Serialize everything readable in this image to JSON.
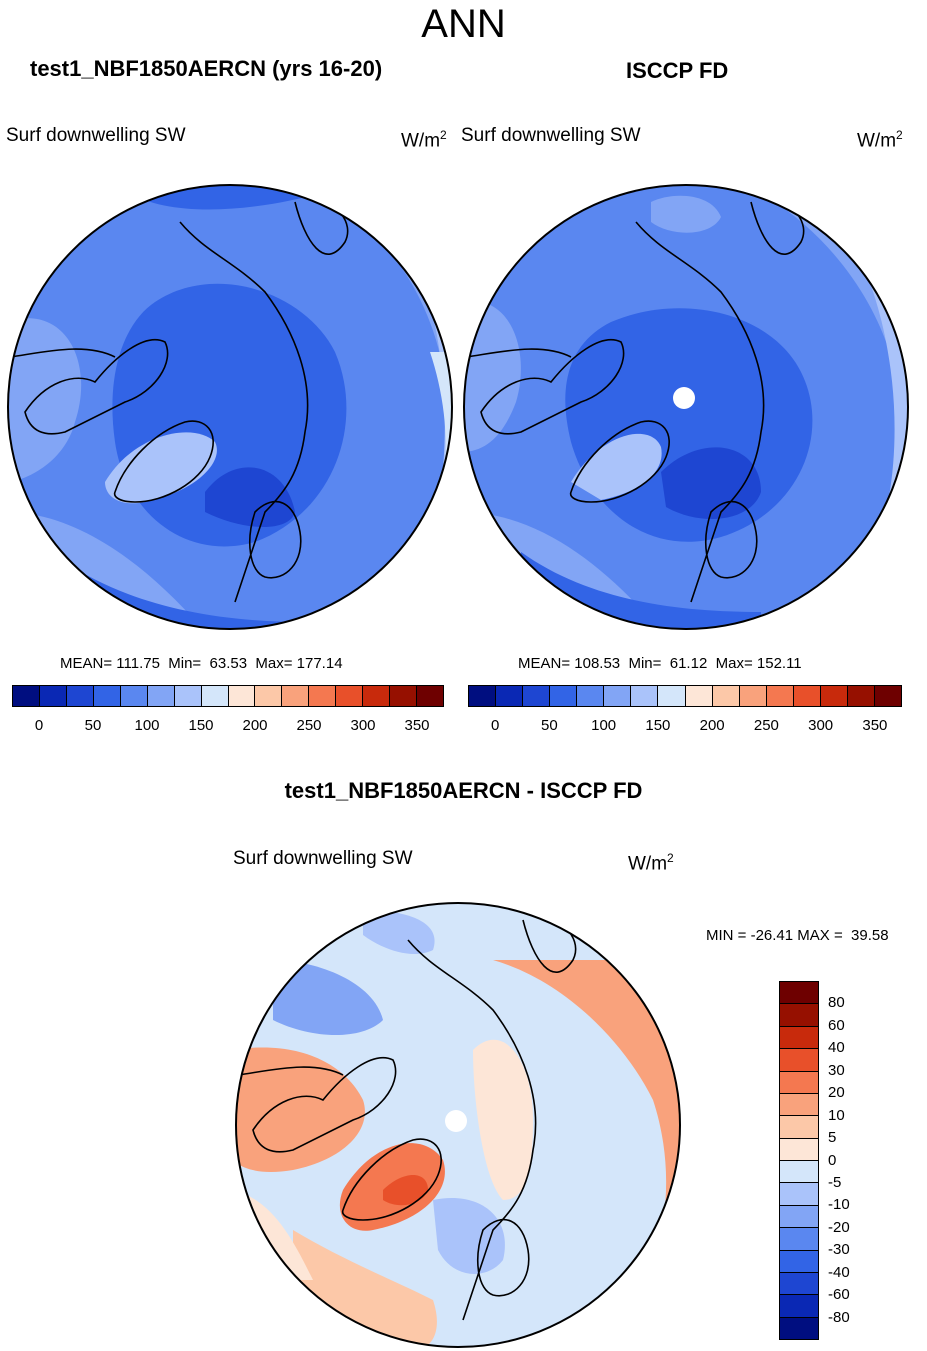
{
  "figure": {
    "title": "ANN"
  },
  "panel_left": {
    "title": "test1_NBF1850AERCN (yrs 16-20)",
    "variable": "Surf downwelling SW",
    "units_base": "W/m",
    "units_exp": "2",
    "stats": "MEAN= 111.75  Min=  63.53  Max= 177.14"
  },
  "panel_right": {
    "title": "ISCCP FD",
    "variable": "Surf downwelling SW",
    "units_base": "W/m",
    "units_exp": "2",
    "stats": "MEAN= 108.53  Min=  61.12  Max= 152.11"
  },
  "panel_diff": {
    "title": "test1_NBF1850AERCN - ISCCP FD",
    "variable": "Surf downwelling SW",
    "units_base": "W/m",
    "units_exp": "2",
    "stats": "MIN = -26.41 MAX =  39.58"
  },
  "colors": {
    "abs_scale": [
      "#000e80",
      "#0a28b4",
      "#1e46d2",
      "#3264e6",
      "#5a87f0",
      "#82a5f5",
      "#aac3fa",
      "#d4e6fa",
      "#fde6d7",
      "#fcc8a8",
      "#f9a27c",
      "#f47850",
      "#e8502a",
      "#c82a0c",
      "#961000",
      "#6e0000"
    ],
    "diff_scale": [
      "#000e80",
      "#0a28b4",
      "#1e46d2",
      "#3264e6",
      "#5a87f0",
      "#82a5f5",
      "#aac3fa",
      "#d4e6fa",
      "#fde6d7",
      "#fcc8a8",
      "#f9a27c",
      "#f47850",
      "#e8502a",
      "#c82a0c",
      "#961000",
      "#6e0000"
    ],
    "map_bg_left": "#5a87f0",
    "map_bg_right": "#5a87f0",
    "map_bg_diff": "#d4e6fa"
  },
  "chart_data": [
    {
      "type": "heatmap",
      "title": "test1_NBF1850AERCN (yrs 16-20)",
      "projection": "north-polar-stereographic",
      "variable": "Surf downwelling SW",
      "units": "W/m2",
      "mean": 111.75,
      "min": 63.53,
      "max": 177.14,
      "colorbar_ticks": [
        "0",
        "50",
        "100",
        "150",
        "200",
        "250",
        "300",
        "350"
      ],
      "colorbar_levels": 16,
      "colorbar_range": [
        -25,
        375
      ]
    },
    {
      "type": "heatmap",
      "title": "ISCCP FD",
      "projection": "north-polar-stereographic",
      "variable": "Surf downwelling SW",
      "units": "W/m2",
      "mean": 108.53,
      "min": 61.12,
      "max": 152.11,
      "colorbar_ticks": [
        "0",
        "50",
        "100",
        "150",
        "200",
        "250",
        "300",
        "350"
      ],
      "colorbar_levels": 16,
      "colorbar_range": [
        -25,
        375
      ]
    },
    {
      "type": "heatmap",
      "title": "test1_NBF1850AERCN - ISCCP FD",
      "projection": "north-polar-stereographic",
      "variable": "Surf downwelling SW",
      "units": "W/m2",
      "min": -26.41,
      "max": 39.58,
      "colorbar_ticks": [
        "80",
        "60",
        "40",
        "30",
        "20",
        "10",
        "5",
        "0",
        "-5",
        "-10",
        "-20",
        "-30",
        "-40",
        "-60",
        "-80"
      ]
    }
  ]
}
